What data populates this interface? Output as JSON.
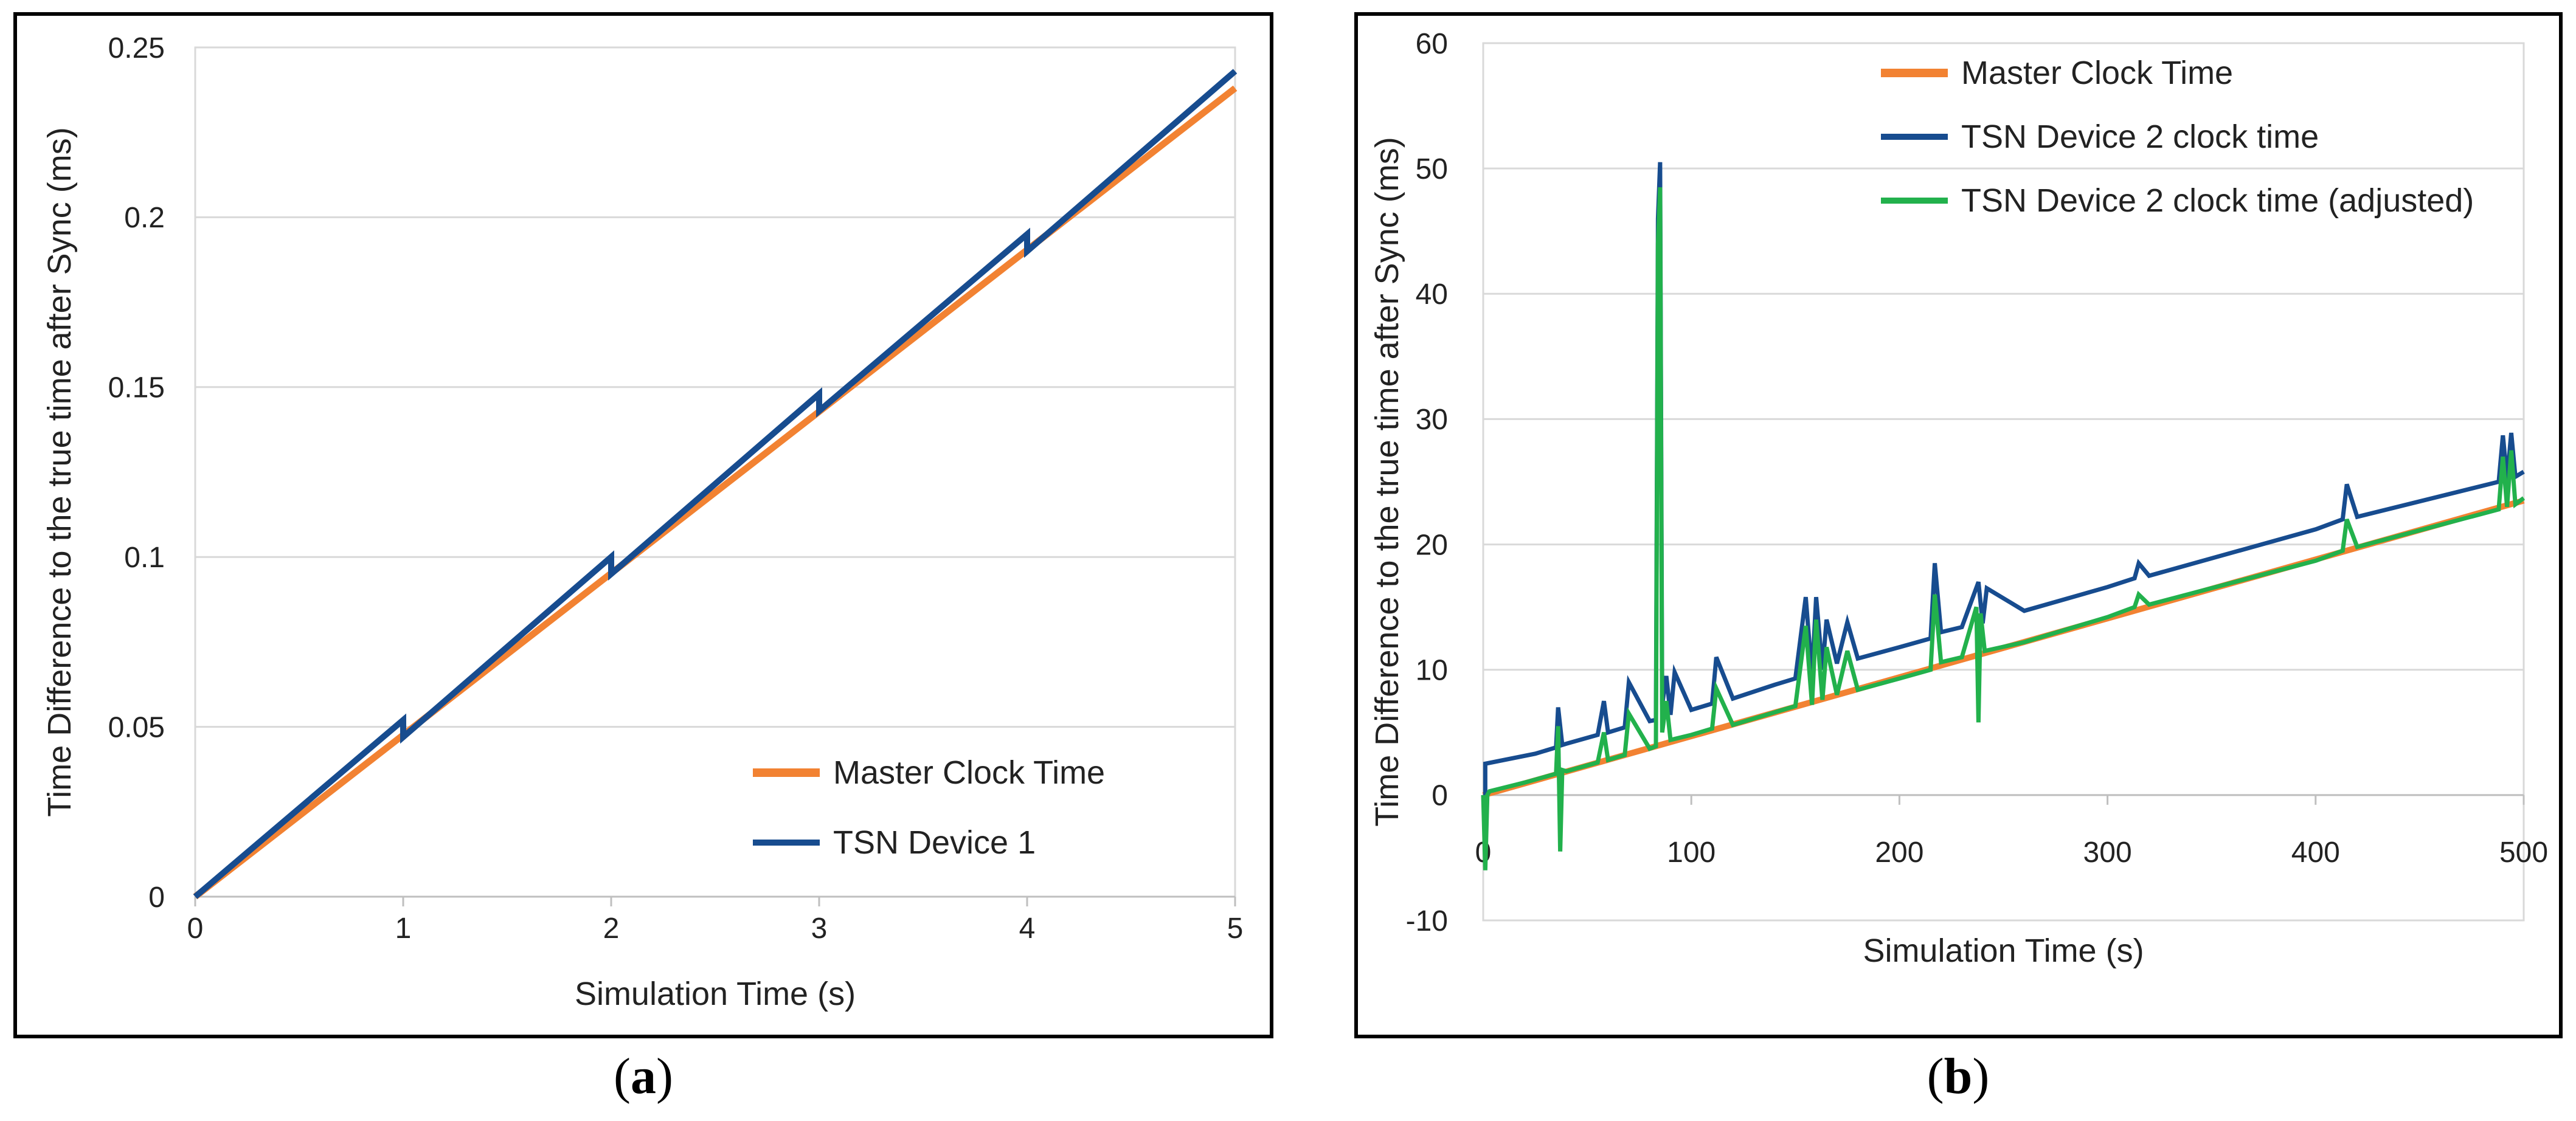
{
  "chart_data": [
    {
      "type": "line",
      "panel_label": "a",
      "title": "",
      "xlabel": "Simulation Time (s)",
      "ylabel": "Time Difference to the true time after Sync (ms)",
      "xlim": [
        0,
        5
      ],
      "ylim": [
        0,
        0.25
      ],
      "xticks": [
        0,
        1,
        2,
        3,
        4,
        5
      ],
      "xtick_labels": [
        "0",
        "1",
        "2",
        "3",
        "4",
        "5"
      ],
      "yticks": [
        0,
        0.05,
        0.1,
        0.15,
        0.2,
        0.25
      ],
      "ytick_labels": [
        "0",
        "0.05",
        "0.1",
        "0.15",
        "0.2",
        "0.25"
      ],
      "grid": true,
      "legend_position": "bottom-right",
      "series": [
        {
          "name": "Master Clock Time",
          "color": "#F28232",
          "x": [
            0,
            5
          ],
          "y": [
            0,
            0.238
          ]
        },
        {
          "name": "TSN Device 1",
          "color": "#174C8F",
          "x": [
            0,
            1,
            1,
            2,
            2,
            3,
            3,
            4,
            4,
            5
          ],
          "y": [
            0,
            0.052,
            0.047,
            0.1,
            0.095,
            0.148,
            0.143,
            0.195,
            0.19,
            0.243
          ]
        }
      ]
    },
    {
      "type": "line",
      "panel_label": "b",
      "title": "",
      "xlabel": "Simulation Time (s)",
      "ylabel": "Time Difference to the true time after Sync (ms)",
      "xlim": [
        0,
        500
      ],
      "ylim": [
        -10,
        60
      ],
      "xticks": [
        0,
        100,
        200,
        300,
        400,
        500
      ],
      "xtick_labels": [
        "0",
        "100",
        "200",
        "300",
        "400",
        "500"
      ],
      "yticks": [
        -10,
        0,
        10,
        20,
        30,
        40,
        50,
        60
      ],
      "ytick_labels": [
        "-10",
        "0",
        "10",
        "20",
        "30",
        "40",
        "50",
        "60"
      ],
      "grid": true,
      "legend_position": "top-right",
      "series": [
        {
          "name": "Master Clock Time",
          "color": "#F28232",
          "x": [
            0,
            500
          ],
          "y": [
            0,
            23.5
          ]
        },
        {
          "name": "TSN Device 2 clock time",
          "color": "#174C8F",
          "x": [
            0,
            1,
            1,
            25,
            35,
            36,
            38,
            40,
            55,
            58,
            60,
            68,
            70,
            80,
            83,
            84,
            85,
            86,
            88,
            90,
            92,
            100,
            110,
            112,
            120,
            140,
            150,
            155,
            158,
            160,
            163,
            165,
            170,
            175,
            180,
            200,
            215,
            217,
            220,
            230,
            238,
            240,
            242,
            260,
            300,
            313,
            315,
            320,
            400,
            413,
            415,
            420,
            488,
            490,
            492,
            494,
            496,
            500
          ],
          "y": [
            0,
            0,
            2.5,
            3.3,
            3.8,
            7.0,
            4.0,
            4.1,
            4.8,
            7.5,
            5.0,
            5.4,
            9.0,
            5.9,
            6.0,
            46.0,
            50.5,
            7.2,
            9.5,
            6.4,
            9.8,
            6.8,
            7.3,
            11.0,
            7.7,
            8.8,
            9.3,
            15.8,
            9.5,
            15.8,
            10.0,
            14.0,
            10.5,
            13.8,
            10.9,
            11.8,
            12.5,
            18.5,
            13.0,
            13.4,
            17.0,
            13.7,
            16.5,
            14.7,
            16.6,
            17.3,
            18.5,
            17.5,
            21.2,
            22.0,
            24.8,
            22.2,
            25.0,
            28.7,
            25.2,
            28.9,
            25.4,
            25.8
          ]
        },
        {
          "name": "TSN Device 2 clock time (adjusted)",
          "color": "#22B14C",
          "x": [
            0,
            1,
            2,
            3,
            20,
            35,
            36,
            37,
            38,
            40,
            55,
            58,
            60,
            68,
            70,
            80,
            83,
            84,
            85,
            86,
            88,
            90,
            100,
            110,
            112,
            120,
            140,
            150,
            155,
            158,
            160,
            163,
            165,
            170,
            175,
            180,
            200,
            215,
            217,
            220,
            230,
            237,
            238,
            239,
            241,
            260,
            300,
            313,
            315,
            320,
            400,
            413,
            415,
            420,
            488,
            490,
            492,
            494,
            496,
            500
          ],
          "y": [
            0,
            -6.0,
            0,
            0.3,
            1.0,
            1.7,
            5.5,
            -4.5,
            2.0,
            1.9,
            2.6,
            5.0,
            2.8,
            3.2,
            6.5,
            3.7,
            3.9,
            44.0,
            48.5,
            5.0,
            7.5,
            4.4,
            4.8,
            5.3,
            8.5,
            5.6,
            6.6,
            7.1,
            13.5,
            7.2,
            14.0,
            7.6,
            11.8,
            8.0,
            11.5,
            8.4,
            9.3,
            10.0,
            16.0,
            10.6,
            11.0,
            15.0,
            5.8,
            14.5,
            11.5,
            12.2,
            14.2,
            15.0,
            16.0,
            15.2,
            18.7,
            19.5,
            22.0,
            19.8,
            22.8,
            27.0,
            23.0,
            27.5,
            23.2,
            23.7
          ]
        }
      ]
    }
  ]
}
